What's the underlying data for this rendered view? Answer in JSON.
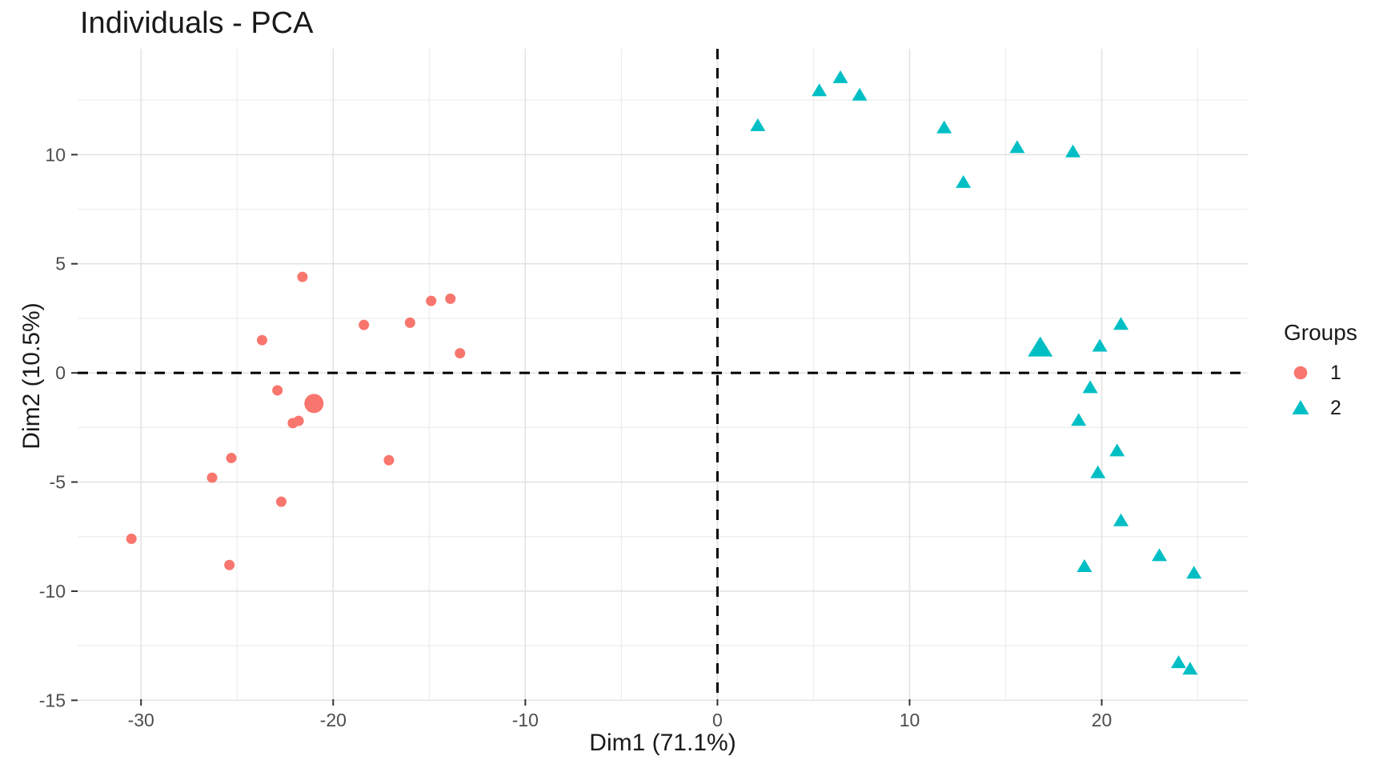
{
  "chart_data": {
    "type": "scatter",
    "title": "Individuals - PCA",
    "xlabel": "Dim1 (71.1%)",
    "ylabel": "Dim2 (10.5%)",
    "xlim": [
      -33.3,
      27.6
    ],
    "ylim": [
      -14.95,
      14.85
    ],
    "x_ticks": [
      -30,
      -20,
      -10,
      0,
      10,
      20
    ],
    "y_ticks": [
      -15,
      -10,
      -5,
      0,
      5,
      10
    ],
    "x_minor_ticks": [
      -25,
      -15,
      -5,
      5,
      15,
      25
    ],
    "y_minor_ticks": [
      -12.5,
      -7.5,
      -2.5,
      2.5,
      7.5,
      12.5
    ],
    "grid": true,
    "reference_lines": {
      "vertical_x": 0,
      "horizontal_y": 0,
      "style": "dashed",
      "color": "#000000"
    },
    "legend": {
      "title": "Groups",
      "position": "right"
    },
    "series": [
      {
        "name": "1",
        "marker": "circle",
        "color": "#F8766D",
        "points": [
          [
            -21.6,
            4.4
          ],
          [
            -23.7,
            1.5
          ],
          [
            -18.4,
            2.2
          ],
          [
            -16.0,
            2.3
          ],
          [
            -14.9,
            3.3
          ],
          [
            -13.9,
            3.4
          ],
          [
            -13.4,
            0.9
          ],
          [
            -22.9,
            -0.8
          ],
          [
            -22.1,
            -2.3
          ],
          [
            -21.8,
            -2.2
          ],
          [
            -25.3,
            -3.9
          ],
          [
            -26.3,
            -4.8
          ],
          [
            -17.1,
            -4.0
          ],
          [
            -22.7,
            -5.9
          ],
          [
            -30.5,
            -7.6
          ],
          [
            -25.4,
            -8.8
          ]
        ],
        "mean_point": [
          -21.0,
          -1.4
        ]
      },
      {
        "name": "2",
        "marker": "triangle",
        "color": "#00BFC4",
        "points": [
          [
            2.1,
            11.3
          ],
          [
            5.3,
            12.9
          ],
          [
            6.4,
            13.5
          ],
          [
            7.4,
            12.7
          ],
          [
            11.8,
            11.2
          ],
          [
            12.8,
            8.7
          ],
          [
            15.6,
            10.3
          ],
          [
            18.5,
            10.1
          ],
          [
            21.0,
            2.2
          ],
          [
            19.9,
            1.2
          ],
          [
            19.4,
            -0.7
          ],
          [
            18.8,
            -2.2
          ],
          [
            20.8,
            -3.6
          ],
          [
            19.8,
            -4.6
          ],
          [
            21.0,
            -6.8
          ],
          [
            19.1,
            -8.9
          ],
          [
            23.0,
            -8.4
          ],
          [
            24.8,
            -9.2
          ],
          [
            24.0,
            -13.3
          ],
          [
            24.6,
            -13.6
          ]
        ],
        "mean_point": [
          16.8,
          1.1
        ]
      }
    ],
    "colors": {
      "grid_major": "#E3E3E3",
      "grid_minor": "#EDEDED",
      "tick_mark": "#333333",
      "tick_label": "#4D4D4D",
      "text": "#1A1A1A",
      "reference_line": "#000000"
    }
  }
}
